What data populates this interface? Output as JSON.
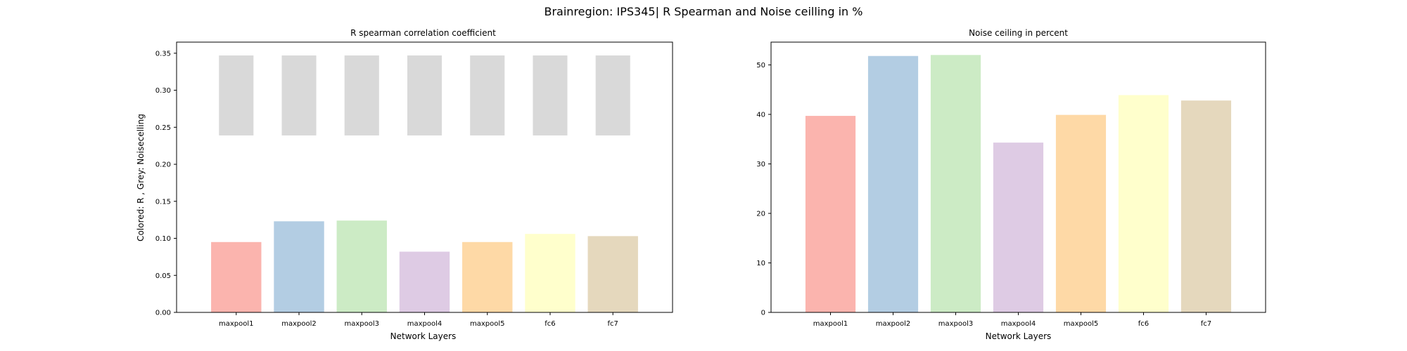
{
  "figure_title": "Brainregion: IPS345| R Spearman and Noise ceilling in %",
  "chart_data": [
    {
      "type": "bar",
      "title": "R spearman correlation coefficient",
      "xlabel": "Network Layers",
      "ylabel": "Colored: R , Grey: Noisecelling",
      "categories": [
        "maxpool1",
        "maxpool2",
        "maxpool3",
        "maxpool4",
        "maxpool5",
        "fc6",
        "fc7"
      ],
      "series": [
        {
          "values": [
            0.095,
            0.123,
            0.124,
            0.082,
            0.095,
            0.106,
            0.103
          ]
        }
      ],
      "noise_ceiling_range": [
        [
          0.239,
          0.347
        ],
        [
          0.239,
          0.347
        ],
        [
          0.239,
          0.347
        ],
        [
          0.239,
          0.347
        ],
        [
          0.239,
          0.347
        ],
        [
          0.239,
          0.347
        ],
        [
          0.239,
          0.347
        ]
      ],
      "ylim": [
        0,
        0.365
      ],
      "yticks": [
        "0.00",
        "0.05",
        "0.10",
        "0.15",
        "0.20",
        "0.25",
        "0.30",
        "0.35"
      ],
      "colors": [
        "#fbb4ae",
        "#b3cde3",
        "#ccebc5",
        "#decbe4",
        "#fed9a6",
        "#ffffcc",
        "#e5d8bd"
      ],
      "noise_color": "#d9d9d9",
      "grid": false
    },
    {
      "type": "bar",
      "title": "Noise ceiling in percent",
      "xlabel": "Network Layers",
      "ylabel": "",
      "categories": [
        "maxpool1",
        "maxpool2",
        "maxpool3",
        "maxpool4",
        "maxpool5",
        "fc6",
        "fc7"
      ],
      "series": [
        {
          "values": [
            39.7,
            51.8,
            52.0,
            34.3,
            39.9,
            43.9,
            42.8
          ]
        }
      ],
      "ylim": [
        0,
        54.6
      ],
      "yticks": [
        "0",
        "10",
        "20",
        "30",
        "40",
        "50"
      ],
      "colors": [
        "#fbb4ae",
        "#b3cde3",
        "#ccebc5",
        "#decbe4",
        "#fed9a6",
        "#ffffcc",
        "#e5d8bd"
      ],
      "grid": false
    }
  ]
}
